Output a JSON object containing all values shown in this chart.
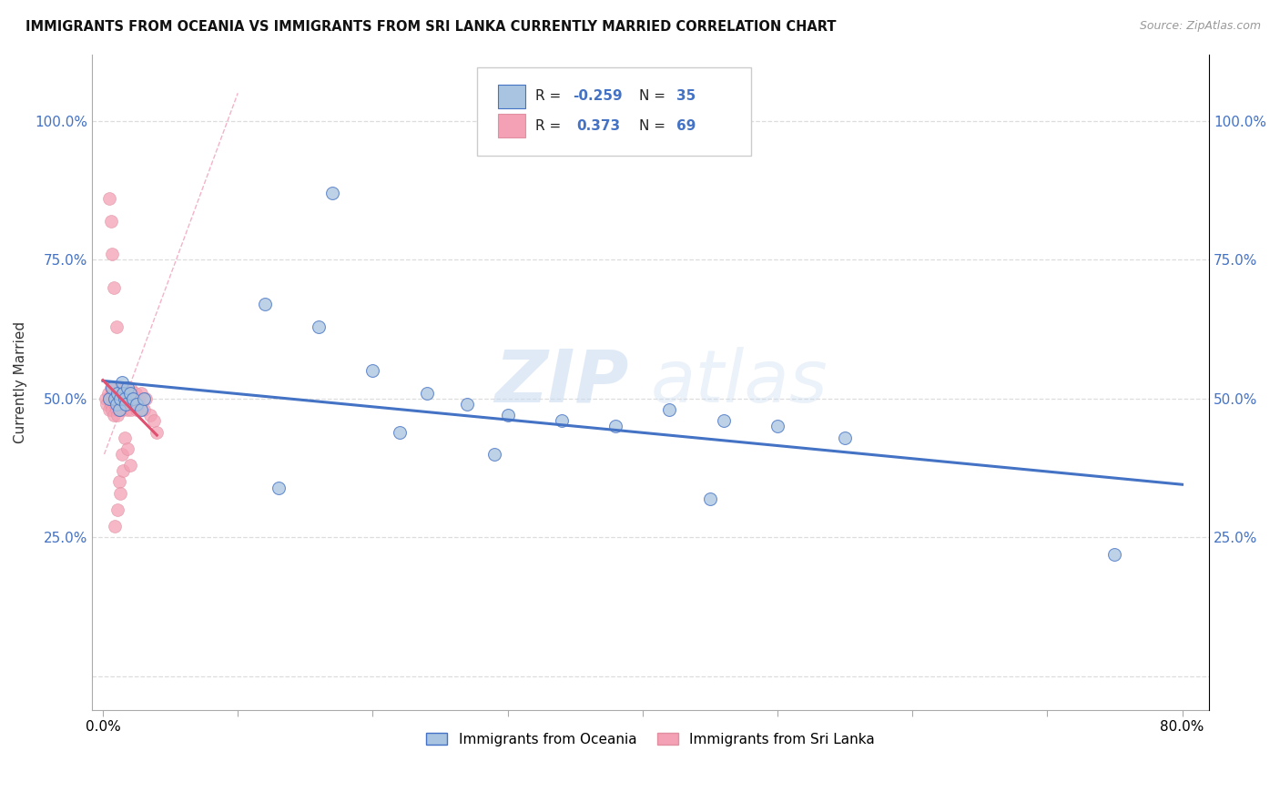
{
  "title": "IMMIGRANTS FROM OCEANIA VS IMMIGRANTS FROM SRI LANKA CURRENTLY MARRIED CORRELATION CHART",
  "source": "Source: ZipAtlas.com",
  "ylabel": "Currently Married",
  "legend_label1": "Immigrants from Oceania",
  "legend_label2": "Immigrants from Sri Lanka",
  "R_oceania": -0.259,
  "N_oceania": 35,
  "R_srilanka": 0.373,
  "N_srilanka": 69,
  "color_oceania": "#a8c4e0",
  "color_srilanka": "#f4a0b5",
  "line_color_oceania": "#4472c4",
  "line_color_srilanka": "#e05070",
  "watermark_zip": "ZIP",
  "watermark_atlas": "atlas",
  "ytick_labels": [
    "",
    "25.0%",
    "50.0%",
    "75.0%",
    "100.0%"
  ],
  "ytick_vals": [
    0.0,
    0.25,
    0.5,
    0.75,
    1.0
  ],
  "xlim": [
    -0.008,
    0.82
  ],
  "ylim": [
    -0.06,
    1.12
  ],
  "oceania_x": [
    0.005,
    0.007,
    0.009,
    0.01,
    0.011,
    0.012,
    0.013,
    0.014,
    0.015,
    0.016,
    0.017,
    0.018,
    0.02,
    0.022,
    0.025,
    0.028,
    0.03,
    0.12,
    0.16,
    0.2,
    0.24,
    0.27,
    0.3,
    0.34,
    0.38,
    0.42,
    0.46,
    0.5,
    0.55,
    0.22,
    0.29,
    0.75,
    0.17,
    0.13,
    0.45
  ],
  "oceania_y": [
    0.5,
    0.52,
    0.5,
    0.49,
    0.51,
    0.48,
    0.5,
    0.53,
    0.51,
    0.5,
    0.49,
    0.52,
    0.51,
    0.5,
    0.49,
    0.48,
    0.5,
    0.67,
    0.63,
    0.55,
    0.51,
    0.49,
    0.47,
    0.46,
    0.45,
    0.48,
    0.46,
    0.45,
    0.43,
    0.44,
    0.4,
    0.22,
    0.87,
    0.34,
    0.32
  ],
  "srilanka_x": [
    0.002,
    0.003,
    0.004,
    0.005,
    0.005,
    0.006,
    0.006,
    0.007,
    0.007,
    0.007,
    0.008,
    0.008,
    0.008,
    0.009,
    0.009,
    0.01,
    0.01,
    0.01,
    0.011,
    0.011,
    0.011,
    0.012,
    0.012,
    0.012,
    0.013,
    0.013,
    0.013,
    0.014,
    0.014,
    0.015,
    0.015,
    0.015,
    0.016,
    0.016,
    0.017,
    0.017,
    0.018,
    0.018,
    0.018,
    0.019,
    0.02,
    0.02,
    0.021,
    0.022,
    0.023,
    0.024,
    0.025,
    0.026,
    0.027,
    0.028,
    0.03,
    0.032,
    0.035,
    0.038,
    0.04,
    0.005,
    0.006,
    0.007,
    0.008,
    0.01,
    0.012,
    0.014,
    0.015,
    0.016,
    0.018,
    0.02,
    0.013,
    0.011,
    0.009
  ],
  "srilanka_y": [
    0.5,
    0.49,
    0.51,
    0.5,
    0.48,
    0.49,
    0.52,
    0.5,
    0.48,
    0.51,
    0.5,
    0.47,
    0.52,
    0.49,
    0.51,
    0.5,
    0.48,
    0.52,
    0.5,
    0.47,
    0.51,
    0.49,
    0.51,
    0.48,
    0.5,
    0.48,
    0.52,
    0.5,
    0.51,
    0.49,
    0.52,
    0.48,
    0.5,
    0.51,
    0.49,
    0.52,
    0.5,
    0.48,
    0.51,
    0.49,
    0.5,
    0.52,
    0.48,
    0.5,
    0.49,
    0.51,
    0.48,
    0.5,
    0.49,
    0.51,
    0.48,
    0.5,
    0.47,
    0.46,
    0.44,
    0.86,
    0.82,
    0.76,
    0.7,
    0.63,
    0.35,
    0.4,
    0.37,
    0.43,
    0.41,
    0.38,
    0.33,
    0.3,
    0.27
  ]
}
